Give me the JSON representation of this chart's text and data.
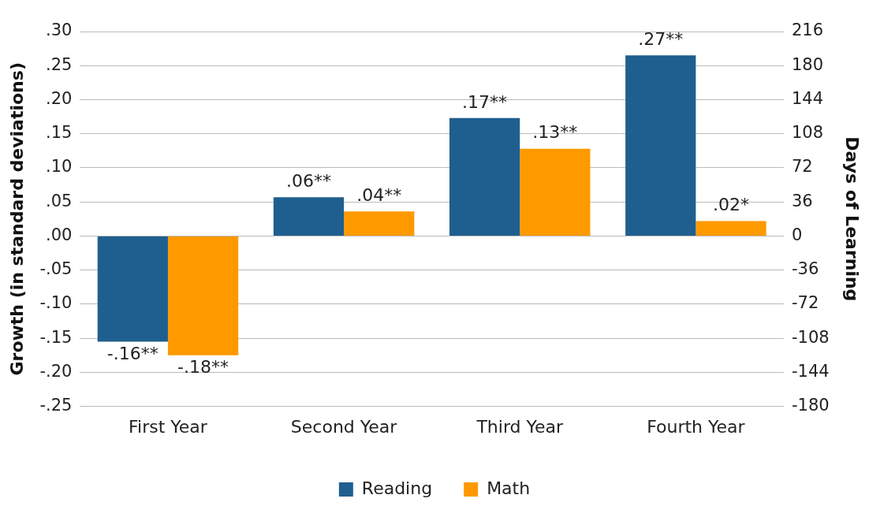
{
  "chart_data": {
    "type": "bar",
    "categories": [
      "First Year",
      "Second Year",
      "Third Year",
      "Fourth Year"
    ],
    "series": [
      {
        "name": "Reading",
        "color": "#1f5f8f",
        "values": [
          -0.155,
          0.057,
          0.173,
          0.265
        ],
        "value_labels": [
          "-.16**",
          ".06**",
          ".17**",
          ".27**"
        ]
      },
      {
        "name": "Math",
        "color": "#ff9900",
        "values": [
          -0.175,
          0.036,
          0.128,
          0.022
        ],
        "value_labels": [
          "-.18**",
          ".04**",
          ".13**",
          ".02*"
        ]
      }
    ],
    "ylabel": "Growth (in standard deviations)",
    "y2label": "Days of Learning",
    "ylim": [
      -0.25,
      0.3
    ],
    "yticks": [
      {
        "value": -0.25,
        "label": "-.25"
      },
      {
        "value": -0.2,
        "label": "-.20"
      },
      {
        "value": -0.15,
        "label": "-.15"
      },
      {
        "value": -0.1,
        "label": "-.10"
      },
      {
        "value": -0.05,
        "label": "-.05"
      },
      {
        "value": 0,
        "label": ".00"
      },
      {
        "value": 0.05,
        "label": ".05"
      },
      {
        "value": 0.1,
        "label": ".10"
      },
      {
        "value": 0.15,
        "label": ".15"
      },
      {
        "value": 0.2,
        "label": ".20"
      },
      {
        "value": 0.25,
        "label": ".25"
      },
      {
        "value": 0.3,
        "label": ".30"
      }
    ],
    "y2lim": [
      -180,
      216
    ],
    "y2ticks": [
      -180,
      -144,
      -108,
      -72,
      -36,
      0,
      36,
      72,
      108,
      144,
      180,
      216
    ],
    "grid": "y",
    "legend": "bottom"
  }
}
